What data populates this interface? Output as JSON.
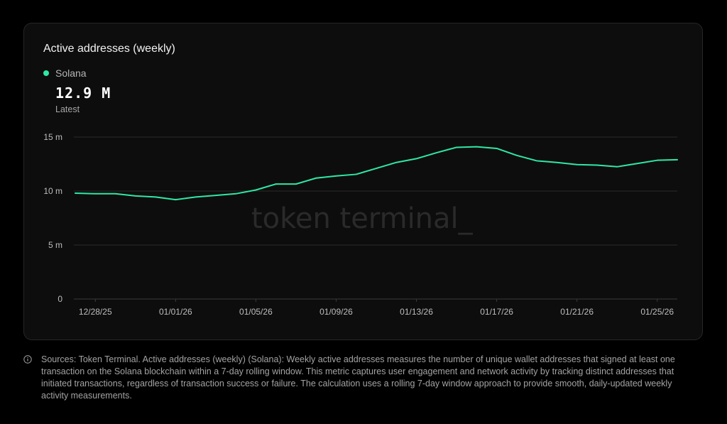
{
  "chart": {
    "title": "Active addresses (weekly)",
    "latest_value": "12.9 M",
    "latest_label": "Latest",
    "watermark": "token terminal_"
  },
  "colors": {
    "series": "#2ee8a5",
    "background": "#000000",
    "card": "#0d0d0d",
    "grid": "#2a2a2a"
  },
  "footnote": {
    "icon": "info-icon",
    "text": "Sources: Token Terminal. Active addresses (weekly) (Solana): Weekly active addresses measures the number of unique wallet addresses that signed at least one transaction on the Solana blockchain within a 7-day rolling window. This metric captures user engagement and network activity by tracking distinct addresses that initiated transactions, regardless of transaction success or failure. The calculation uses a rolling 7-day window approach to provide smooth, daily-updated weekly activity measurements."
  },
  "chart_data": {
    "type": "line",
    "title": "Active addresses (weekly)",
    "xlabel": "",
    "ylabel": "",
    "ylim": [
      0,
      15
    ],
    "yticks": [
      {
        "value": 0,
        "label": "0"
      },
      {
        "value": 5,
        "label": "5 m"
      },
      {
        "value": 10,
        "label": "10 m"
      },
      {
        "value": 15,
        "label": "15 m"
      }
    ],
    "x": [
      "12/27/25",
      "12/28/25",
      "12/29/25",
      "12/30/25",
      "12/31/25",
      "01/01/26",
      "01/02/26",
      "01/03/26",
      "01/04/26",
      "01/05/26",
      "01/06/26",
      "01/07/26",
      "01/08/26",
      "01/09/26",
      "01/10/26",
      "01/11/26",
      "01/12/26",
      "01/13/26",
      "01/14/26",
      "01/15/26",
      "01/16/26",
      "01/17/26",
      "01/18/26",
      "01/19/26",
      "01/20/26",
      "01/21/26",
      "01/22/26",
      "01/23/26",
      "01/24/26",
      "01/25/26",
      "01/26/26"
    ],
    "xticks": [
      "12/28/25",
      "01/01/26",
      "01/05/26",
      "01/09/26",
      "01/13/26",
      "01/17/26",
      "01/21/26",
      "01/25/26"
    ],
    "grid": true,
    "legend_position": "top-left",
    "series": [
      {
        "name": "Solana",
        "color": "#2ee8a5",
        "values": [
          9.8,
          9.75,
          9.75,
          9.55,
          9.45,
          9.2,
          9.45,
          9.6,
          9.75,
          10.1,
          10.65,
          10.65,
          11.2,
          11.4,
          11.55,
          12.1,
          12.65,
          13.0,
          13.55,
          14.05,
          14.1,
          13.95,
          13.3,
          12.8,
          12.65,
          12.45,
          12.4,
          12.25,
          12.55,
          12.85,
          12.9
        ]
      }
    ]
  }
}
